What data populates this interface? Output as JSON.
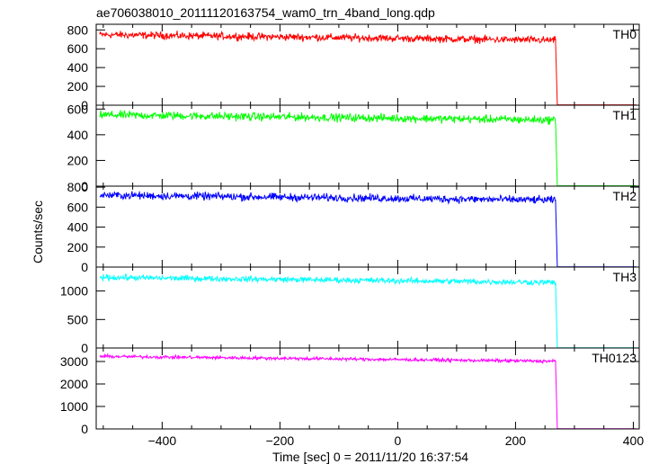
{
  "chart_data": {
    "type": "line",
    "title": "ae706038010_20111120163754_wam0_trn_4band_long.qdp",
    "xlabel": "Time [sec] 0 = 2011/11/20 16:37:54",
    "ylabel": "Counts/sec",
    "xlim": [
      -512,
      410
    ],
    "x_ticks": [
      -400,
      -200,
      0,
      200,
      400
    ],
    "grid": false,
    "drop_time": 268,
    "panels": [
      {
        "name": "TH0",
        "color": "#ff0000",
        "ylim": [
          0,
          860
        ],
        "y_ticks": [
          0,
          200,
          400,
          600,
          800
        ],
        "level_start": 750,
        "level_end": 690,
        "noise": 32,
        "after_drop": 4
      },
      {
        "name": "TH1",
        "color": "#00ff00",
        "ylim": [
          0,
          630
        ],
        "y_ticks": [
          0,
          200,
          400,
          600
        ],
        "level_start": 555,
        "level_end": 515,
        "noise": 26,
        "after_drop": 3
      },
      {
        "name": "TH2",
        "color": "#0000ff",
        "ylim": [
          0,
          810
        ],
        "y_ticks": [
          0,
          200,
          400,
          600,
          800
        ],
        "level_start": 720,
        "level_end": 670,
        "noise": 32,
        "after_drop": 3
      },
      {
        "name": "TH3",
        "color": "#00ffff",
        "ylim": [
          0,
          1420
        ],
        "y_ticks": [
          0,
          500,
          1000
        ],
        "level_start": 1240,
        "level_end": 1150,
        "noise": 42,
        "after_drop": 4
      },
      {
        "name": "TH0123",
        "color": "#ff00ff",
        "ylim": [
          0,
          3600
        ],
        "y_ticks": [
          0,
          1000,
          2000,
          3000
        ],
        "level_start": 3230,
        "level_end": 3010,
        "noise": 60,
        "after_drop": 12
      }
    ]
  }
}
